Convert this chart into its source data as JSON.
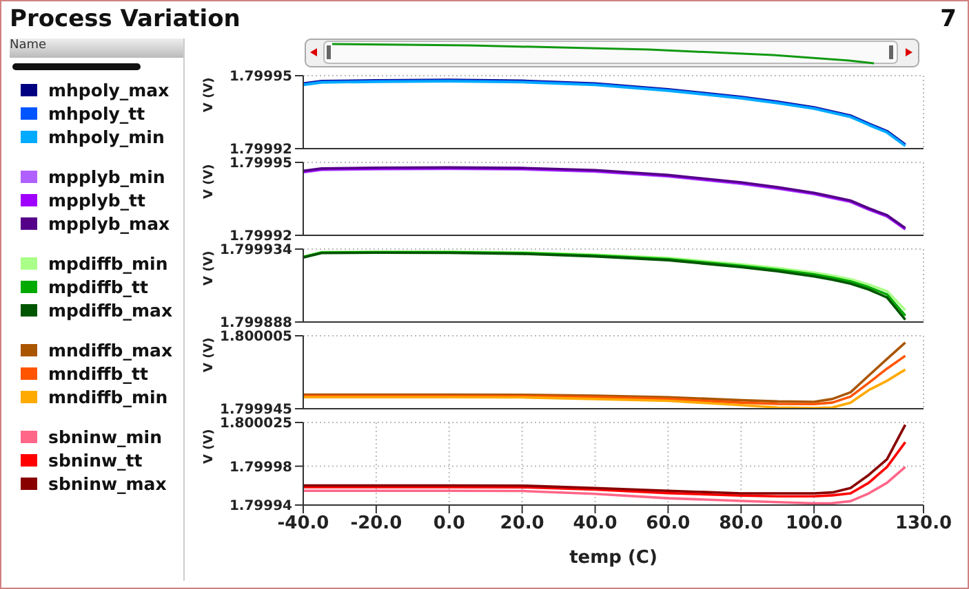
{
  "chart_data": [
    {
      "type": "line",
      "title": "Process Variation",
      "annotations": [
        "7"
      ],
      "legend_title": "Name",
      "legend": "left",
      "grid": true,
      "tick_labels": "y",
      "ylabel": "V (V)",
      "x": [
        -40,
        -35,
        -20,
        0,
        20,
        40,
        60,
        80,
        90,
        100,
        105,
        110,
        115,
        120,
        125
      ],
      "xlim": [
        -40,
        130
      ],
      "ylim": [
        1.79992,
        1.79995
      ],
      "yticks": [
        1.79992,
        1.79995
      ],
      "series": [
        {
          "name": "mhpoly_max",
          "color": "#000080",
          "values": [
            1.7999468,
            1.7999478,
            1.7999481,
            1.7999483,
            1.7999479,
            1.7999468,
            1.7999444,
            1.7999413,
            1.7999393,
            1.799937,
            1.7999353,
            1.7999336,
            1.7999303,
            1.7999272,
            1.7999217
          ]
        },
        {
          "name": "mhpoly_tt",
          "color": "#0055ff",
          "values": [
            1.7999465,
            1.7999475,
            1.7999478,
            1.799948,
            1.7999476,
            1.7999465,
            1.7999441,
            1.799941,
            1.799939,
            1.7999367,
            1.799935,
            1.7999333,
            1.79993,
            1.7999269,
            1.7999214
          ]
        },
        {
          "name": "mhpoly_min",
          "color": "#00aaff",
          "values": [
            1.7999462,
            1.7999472,
            1.7999475,
            1.7999477,
            1.7999473,
            1.7999462,
            1.7999438,
            1.7999407,
            1.7999387,
            1.7999364,
            1.7999347,
            1.799933,
            1.7999297,
            1.7999266,
            1.7999211
          ]
        }
      ]
    },
    {
      "type": "line",
      "legend": "left",
      "grid": true,
      "tick_labels": "y",
      "ylabel": "V (V)",
      "x": [
        -40,
        -35,
        -20,
        0,
        20,
        40,
        60,
        80,
        90,
        100,
        105,
        110,
        115,
        120,
        125
      ],
      "xlim": [
        -40,
        130
      ],
      "ylim": [
        1.79992,
        1.79995
      ],
      "yticks": [
        1.79992,
        1.79995
      ],
      "series": [
        {
          "name": "mpplyb_min",
          "color": "#b060ff",
          "values": [
            1.7999459,
            1.7999469,
            1.7999472,
            1.7999473,
            1.7999471,
            1.7999462,
            1.7999442,
            1.7999412,
            1.7999392,
            1.7999369,
            1.7999353,
            1.7999337,
            1.7999305,
            1.7999277,
            1.7999224
          ]
        },
        {
          "name": "mpplyb_tt",
          "color": "#a000ff",
          "values": [
            1.7999462,
            1.7999472,
            1.7999475,
            1.7999476,
            1.7999474,
            1.7999465,
            1.7999445,
            1.7999415,
            1.7999395,
            1.7999372,
            1.7999356,
            1.799934,
            1.7999308,
            1.799928,
            1.7999227
          ]
        },
        {
          "name": "mpplyb_max",
          "color": "#550088",
          "values": [
            1.7999465,
            1.7999475,
            1.7999478,
            1.7999479,
            1.7999477,
            1.7999468,
            1.7999448,
            1.7999418,
            1.7999398,
            1.7999375,
            1.7999359,
            1.7999343,
            1.7999311,
            1.7999283,
            1.799923
          ]
        }
      ]
    },
    {
      "type": "line",
      "legend": "left",
      "grid": true,
      "tick_labels": "y",
      "ylabel": "V (V)",
      "x": [
        -40,
        -35,
        -20,
        0,
        20,
        40,
        60,
        80,
        90,
        100,
        105,
        110,
        115,
        120,
        125
      ],
      "xlim": [
        -40,
        130
      ],
      "ylim": [
        1.799888,
        1.799934
      ],
      "yticks": [
        1.799888,
        1.799934
      ],
      "series": [
        {
          "name": "mpdiffb_min",
          "color": "#aaff88",
          "values": [
            1.7999293,
            1.7999321,
            1.7999323,
            1.7999323,
            1.7999319,
            1.7999305,
            1.7999284,
            1.7999244,
            1.799922,
            1.7999192,
            1.7999173,
            1.799915,
            1.7999117,
            1.7999075,
            1.7998955
          ]
        },
        {
          "name": "mpdiffb_tt",
          "color": "#00aa00",
          "values": [
            1.799929,
            1.7999318,
            1.799932,
            1.799932,
            1.7999315,
            1.79993,
            1.7999277,
            1.7999235,
            1.799921,
            1.799918,
            1.799916,
            1.7999136,
            1.79991,
            1.7999054,
            1.799892
          ]
        },
        {
          "name": "mpdiffb_max",
          "color": "#005500",
          "values": [
            1.7999287,
            1.7999315,
            1.7999317,
            1.7999316,
            1.799931,
            1.7999294,
            1.799927,
            1.7999226,
            1.79992,
            1.7999168,
            1.7999147,
            1.7999122,
            1.7999085,
            1.7999035,
            1.7998895
          ]
        }
      ]
    },
    {
      "type": "line",
      "legend": "left",
      "grid": true,
      "tick_labels": "y",
      "ylabel": "V (V)",
      "x": [
        -40,
        -35,
        -20,
        0,
        20,
        40,
        60,
        80,
        90,
        100,
        105,
        110,
        115,
        120,
        125
      ],
      "xlim": [
        -40,
        130
      ],
      "ylim": [
        1.799945,
        1.800005
      ],
      "yticks": [
        1.799945,
        1.800005
      ],
      "series": [
        {
          "name": "mndiffb_max",
          "color": "#aa5500",
          "values": [
            1.7999566,
            1.7999566,
            1.7999566,
            1.7999566,
            1.7999564,
            1.7999557,
            1.7999545,
            1.799952,
            1.799951,
            1.7999507,
            1.799953,
            1.7999585,
            1.7999723,
            1.799986,
            1.7999994
          ]
        },
        {
          "name": "mndiffb_tt",
          "color": "#ff5500",
          "values": [
            1.7999555,
            1.7999555,
            1.7999555,
            1.7999555,
            1.7999553,
            1.7999545,
            1.799953,
            1.79995,
            1.799949,
            1.7999488,
            1.79995,
            1.799955,
            1.7999663,
            1.799978,
            1.7999885
          ]
        },
        {
          "name": "mndiffb_min",
          "color": "#ffaa00",
          "values": [
            1.7999545,
            1.7999545,
            1.7999545,
            1.7999545,
            1.7999543,
            1.799953,
            1.7999515,
            1.799948,
            1.799946,
            1.7999455,
            1.799946,
            1.79995,
            1.7999603,
            1.799968,
            1.7999772
          ]
        }
      ]
    },
    {
      "type": "line",
      "legend": "left",
      "grid": true,
      "xlabel": "temp (C)",
      "ylabel": "V (V)",
      "x": [
        -40,
        -35,
        -20,
        0,
        20,
        40,
        60,
        80,
        90,
        100,
        105,
        110,
        115,
        120,
        125
      ],
      "xlim": [
        -40,
        130
      ],
      "xticks": [
        {
          "value": -40,
          "label": "-40.0"
        },
        {
          "value": -20,
          "label": "-20.0"
        },
        {
          "value": 0,
          "label": "0.0"
        },
        {
          "value": 20,
          "label": "20.0"
        },
        {
          "value": 40,
          "label": "40.0"
        },
        {
          "value": 60,
          "label": "60.0"
        },
        {
          "value": 80,
          "label": "80.0"
        },
        {
          "value": 100,
          "label": "100.0"
        },
        {
          "value": 130,
          "label": "130.0"
        }
      ],
      "ylim": [
        1.79994,
        1.800025
      ],
      "yticks": [
        1.79994,
        1.79998,
        1.800025
      ],
      "series": [
        {
          "name": "sbninw_min",
          "color": "#ff6688",
          "values": [
            1.7999547,
            1.7999547,
            1.7999547,
            1.7999547,
            1.7999545,
            1.7999515,
            1.799947,
            1.7999443,
            1.799943,
            1.7999418,
            1.799942,
            1.799944,
            1.799952,
            1.7999629,
            1.7999792
          ]
        },
        {
          "name": "sbninw_tt",
          "color": "#ff0000",
          "values": [
            1.7999585,
            1.7999585,
            1.7999585,
            1.7999585,
            1.7999583,
            1.799956,
            1.7999523,
            1.7999497,
            1.799949,
            1.799949,
            1.79995,
            1.799952,
            1.7999629,
            1.7999792,
            1.8000047
          ]
        },
        {
          "name": "sbninw_max",
          "color": "#880000",
          "values": [
            1.7999602,
            1.7999602,
            1.7999602,
            1.7999602,
            1.79996,
            1.7999575,
            1.7999547,
            1.799952,
            1.799952,
            1.799952,
            1.799953,
            1.7999575,
            1.799971,
            1.7999872,
            1.8000226
          ]
        }
      ]
    }
  ]
}
